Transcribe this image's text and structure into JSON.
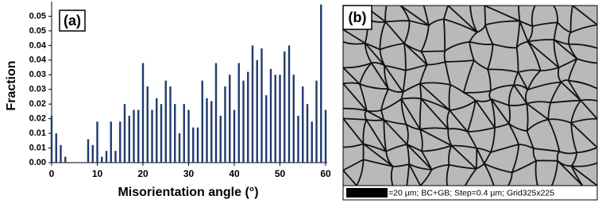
{
  "chart_data": {
    "type": "bar",
    "panel_label": "(a)",
    "x_label": "Misorientation angle (°)",
    "y_label": "Fraction",
    "x": [
      0,
      1,
      2,
      3,
      4,
      5,
      6,
      7,
      8,
      9,
      10,
      11,
      12,
      13,
      14,
      15,
      16,
      17,
      18,
      19,
      20,
      21,
      22,
      23,
      24,
      25,
      26,
      27,
      28,
      29,
      30,
      31,
      32,
      33,
      34,
      35,
      36,
      37,
      38,
      39,
      40,
      41,
      42,
      43,
      44,
      45,
      46,
      47,
      48,
      49,
      50,
      51,
      52,
      53,
      54,
      55,
      56,
      57,
      58,
      59,
      60
    ],
    "values": [
      0.016,
      0.01,
      0.006,
      0.002,
      0,
      0,
      0,
      0,
      0.008,
      0.006,
      0.014,
      0.002,
      0.004,
      0.014,
      0.004,
      0.014,
      0.02,
      0.016,
      0.018,
      0.018,
      0.034,
      0.026,
      0.018,
      0.022,
      0.02,
      0.028,
      0.026,
      0.02,
      0.01,
      0.02,
      0.018,
      0.012,
      0.012,
      0.028,
      0.022,
      0.021,
      0.034,
      0.016,
      0.026,
      0.03,
      0.018,
      0.034,
      0.028,
      0.031,
      0.04,
      0.035,
      0.039,
      0.023,
      0.032,
      0.03,
      0.03,
      0.038,
      0.04,
      0.03,
      0.016,
      0.026,
      0.02,
      0.014,
      0.028,
      0.054,
      0.018
    ],
    "color": "#1f3a6e",
    "xlim": [
      0,
      60
    ],
    "xticks": [
      0,
      10,
      20,
      30,
      40,
      50,
      60
    ],
    "ylim": [
      0,
      0.055
    ],
    "yticks": [
      {
        "value": 0,
        "label": "0.00"
      },
      {
        "value": 0.005,
        "label": "0.01"
      },
      {
        "value": 0.01,
        "label": "0.01"
      },
      {
        "value": 0.015,
        "label": "0.02"
      },
      {
        "value": 0.02,
        "label": "0.02"
      },
      {
        "value": 0.025,
        "label": "0.03"
      },
      {
        "value": 0.03,
        "label": "0.03"
      },
      {
        "value": 0.035,
        "label": "0.04"
      },
      {
        "value": 0.04,
        "label": "0.04"
      },
      {
        "value": 0.045,
        "label": "0.05"
      },
      {
        "value": 0.05,
        "label": "0.05"
      }
    ]
  },
  "micrograph": {
    "panel_label": "(b)",
    "caption": "=20 µm; BC+GB; Step=0.4 µm; Grid325x225"
  }
}
